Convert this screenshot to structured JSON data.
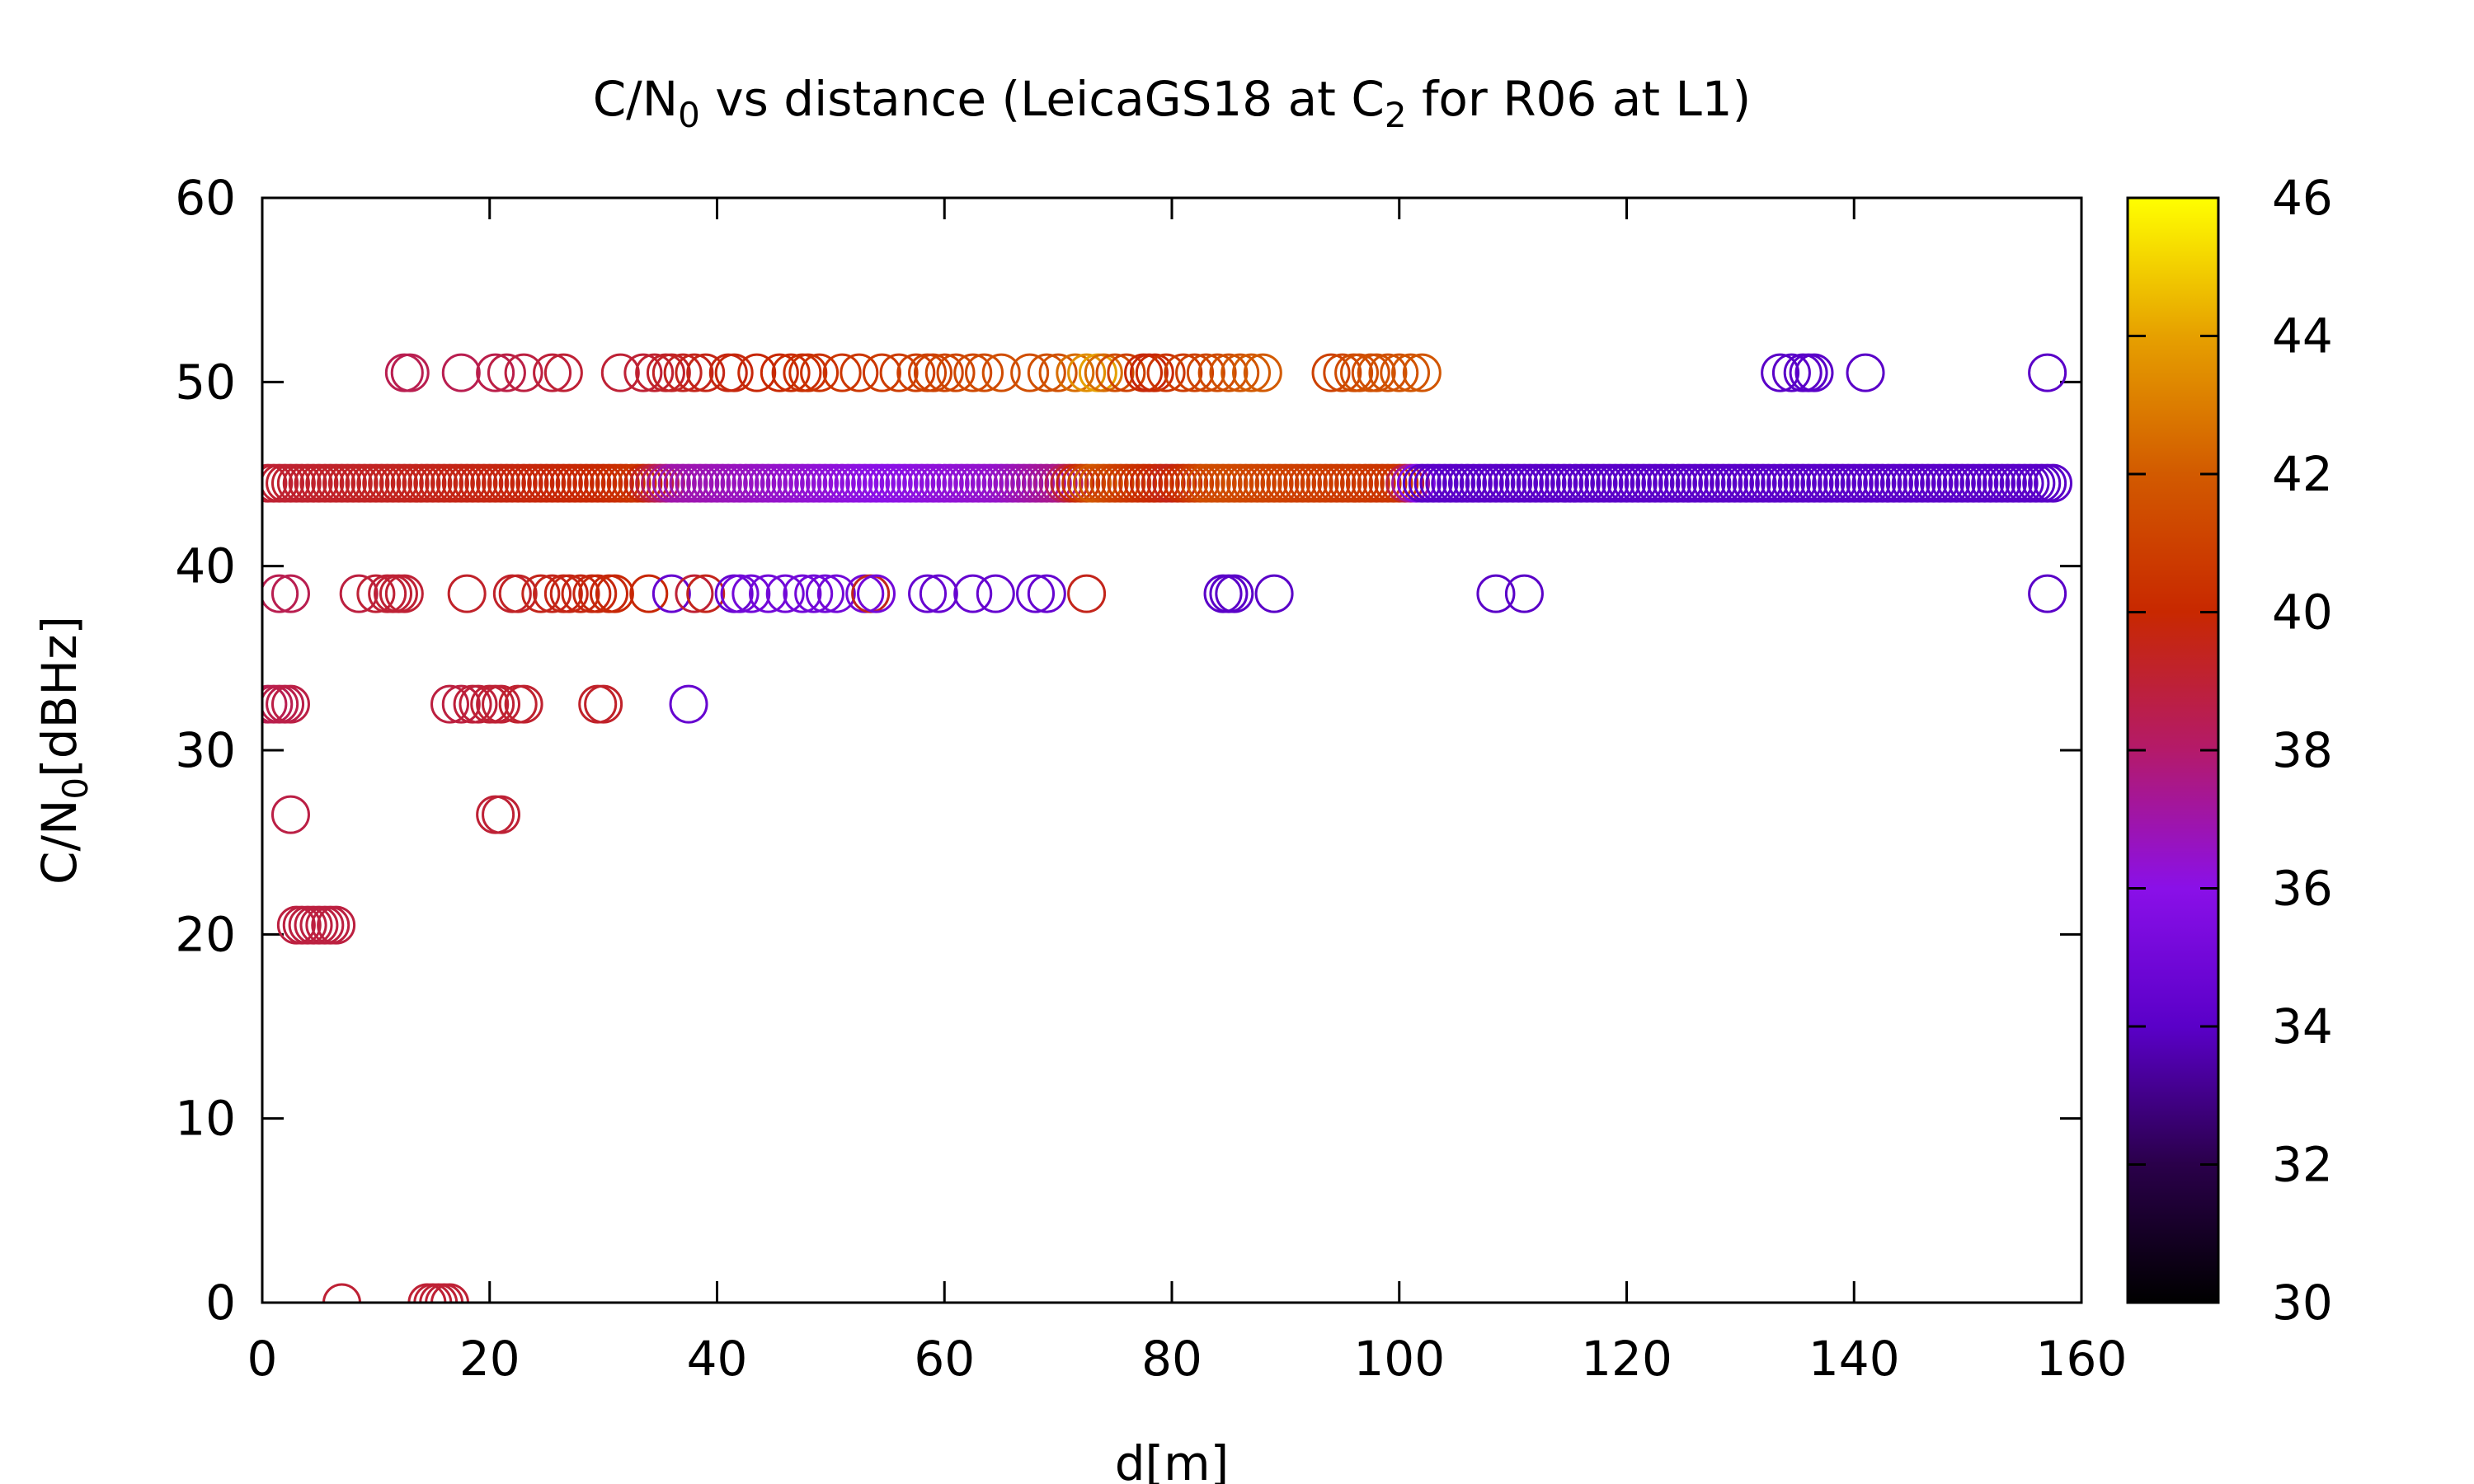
{
  "chart_data": {
    "type": "scatter",
    "title_parts": {
      "a": "C/N",
      "a_sub": "0",
      "b": " vs distance (LeicaGS18 at C",
      "b_sub": "2",
      "c": " for R06 at L1)"
    },
    "xlabel": "d[m]",
    "ylabel_parts": {
      "a": "C/N",
      "a_sub": "0",
      "b": "[dBHz]"
    },
    "xlim": [
      0,
      160
    ],
    "ylim": [
      0,
      60
    ],
    "xticks": [
      0,
      20,
      40,
      60,
      80,
      100,
      120,
      140,
      160
    ],
    "yticks": [
      0,
      10,
      20,
      30,
      40,
      50,
      60
    ],
    "colorbar": {
      "min": 30,
      "max": 46,
      "ticks": [
        30,
        32,
        34,
        36,
        38,
        40,
        42,
        44,
        46
      ],
      "palette": "gnuplot-default (black-purple-red-orange-yellow)"
    },
    "marker": "open-circle",
    "groups": [
      {
        "y": 50.5,
        "x": [
          12.5,
          13.0,
          17.5,
          20.5,
          21.5,
          23.0,
          25.5,
          26.5,
          31.5,
          33.5,
          34.5,
          35.5,
          36.0,
          37.0,
          38.0,
          39.0,
          41.0,
          41.5,
          43.5,
          45.5,
          46.5,
          47.5,
          48.0,
          49.0,
          51.0,
          52.5,
          54.5,
          56.0,
          57.5,
          58.5,
          59.0,
          60.0,
          61.0,
          62.5,
          63.5,
          65.0,
          67.5,
          69.0,
          70.0,
          71.5,
          72.5,
          73.5,
          74.0,
          75.0,
          76.0,
          77.5,
          78.0,
          78.5,
          79.5,
          81.0,
          82.0,
          83.0,
          84.0,
          85.0,
          86.0,
          87.0,
          88.0,
          94.0,
          95.0,
          96.0,
          96.5,
          97.5,
          98.0,
          99.0,
          100.0,
          101.0,
          102.0,
          133.5,
          134.5,
          135.5,
          136.0,
          136.5,
          141.0,
          157.0
        ],
        "c": [
          38.5,
          38.5,
          38.5,
          38.6,
          38.7,
          38.8,
          38.9,
          39.0,
          39.0,
          39.0,
          39.1,
          39.2,
          39.3,
          39.4,
          39.5,
          39.6,
          39.7,
          39.8,
          39.9,
          40.0,
          40.1,
          40.2,
          40.3,
          40.4,
          40.5,
          40.6,
          40.7,
          40.8,
          40.9,
          41.0,
          41.0,
          41.1,
          41.2,
          41.3,
          41.4,
          41.5,
          41.5,
          41.6,
          41.6,
          42.5,
          43.5,
          44.0,
          42.5,
          41.5,
          41.0,
          40.0,
          39.8,
          40.0,
          40.5,
          40.8,
          41.0,
          41.2,
          41.4,
          41.6,
          41.8,
          42.0,
          42.0,
          41.0,
          41.2,
          41.4,
          41.5,
          41.5,
          41.6,
          41.6,
          41.7,
          41.8,
          41.8,
          34.0,
          34.0,
          34.0,
          34.0,
          34.0,
          34.0,
          34.0
        ]
      },
      {
        "y": 44.5,
        "x_start": 0.5,
        "x_end": 157.5,
        "step": 0.5,
        "color_profile": [
          [
            0,
            39.0
          ],
          [
            30,
            40.0
          ],
          [
            33,
            40.5
          ],
          [
            36,
            37.0
          ],
          [
            45,
            36.5
          ],
          [
            55,
            36.0
          ],
          [
            65,
            36.5
          ],
          [
            70,
            37.5
          ],
          [
            73,
            42.0
          ],
          [
            75,
            41.0
          ],
          [
            80,
            39.5
          ],
          [
            83,
            41.5
          ],
          [
            90,
            41.0
          ],
          [
            100,
            40.5
          ],
          [
            102,
            34.0
          ],
          [
            157.5,
            34.0
          ]
        ]
      },
      {
        "y": 38.5,
        "x": [
          1.5,
          2.5,
          8.5,
          10.0,
          11.0,
          11.5,
          12.0,
          12.5,
          18.0,
          22.0,
          22.5,
          24.5,
          25.5,
          26.5,
          27.0,
          28.0,
          29.0,
          29.5,
          30.5,
          31.0,
          34.0,
          36.0,
          38.0,
          39.0,
          41.5,
          42.0,
          43.0,
          44.5,
          46.0,
          47.5,
          48.5,
          49.5,
          50.5,
          53.0,
          53.5,
          54.0,
          58.5,
          59.5,
          62.5,
          64.5,
          68.0,
          69.0,
          72.5,
          84.5,
          85.0,
          85.5,
          89.0,
          108.5,
          111.0,
          157.0
        ],
        "c": [
          38.5,
          38.5,
          38.8,
          39.0,
          39.0,
          39.0,
          39.0,
          39.0,
          39.2,
          39.2,
          39.3,
          39.5,
          39.5,
          39.6,
          39.6,
          39.7,
          39.7,
          39.8,
          39.8,
          39.9,
          39.9,
          34.5,
          39.0,
          39.5,
          34.5,
          35.0,
          35.0,
          35.0,
          35.0,
          35.0,
          35.0,
          35.0,
          35.0,
          35.0,
          39.5,
          35.0,
          34.5,
          34.5,
          34.5,
          34.5,
          34.5,
          34.5,
          39.5,
          34.0,
          34.0,
          34.0,
          34.0,
          34.0,
          34.0,
          34.0
        ]
      },
      {
        "y": 32.5,
        "x": [
          0.5,
          1.0,
          1.5,
          2.0,
          2.5,
          16.5,
          17.5,
          18.5,
          19.0,
          20.0,
          20.5,
          21.0,
          22.5,
          23.0,
          29.5,
          30.0,
          37.5
        ],
        "c": [
          38.5,
          38.5,
          38.6,
          38.6,
          38.7,
          38.8,
          38.8,
          38.9,
          38.9,
          39.0,
          39.0,
          39.0,
          39.1,
          39.1,
          39.2,
          39.2,
          34.5
        ]
      },
      {
        "y": 26.5,
        "x": [
          2.5,
          20.5,
          21.0
        ],
        "c": [
          38.7,
          39.0,
          39.0
        ]
      },
      {
        "y": 20.5,
        "x": [
          3.0,
          3.5,
          4.0,
          4.5,
          5.0,
          5.5,
          6.0,
          6.5
        ],
        "c": [
          38.8,
          38.8,
          38.8,
          38.8,
          38.8,
          38.8,
          38.8,
          38.8
        ]
      },
      {
        "y": 0,
        "x": [
          7.0,
          14.5,
          15.0,
          15.5,
          16.0,
          16.5
        ],
        "c": [
          39.0,
          39.0,
          39.0,
          39.0,
          39.0,
          39.0
        ]
      }
    ]
  }
}
